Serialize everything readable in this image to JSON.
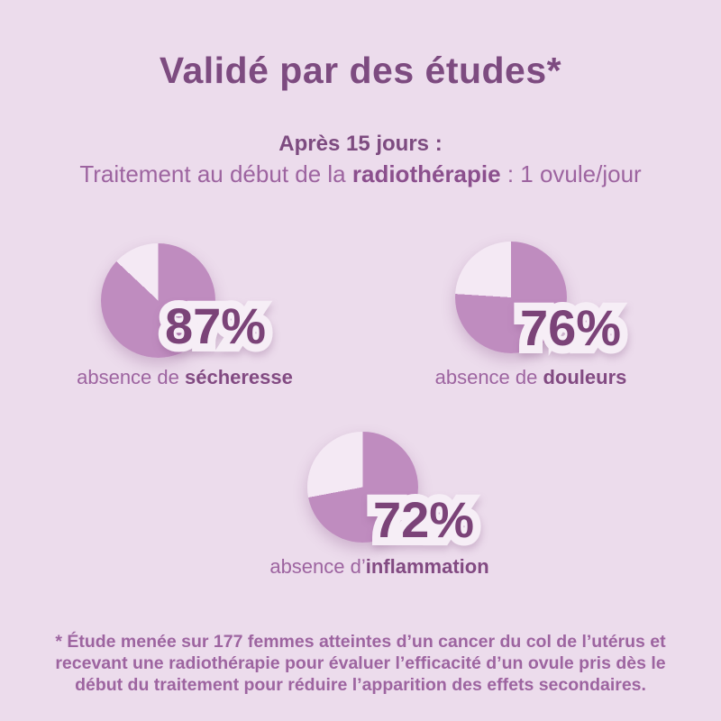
{
  "title": "Validé par des études*",
  "subtitle": {
    "line1": "Après 15 jours :",
    "line2_prefix": "Traitement au début de la ",
    "line2_bold": "radiothérapie",
    "line2_suffix": " : 1 ovule/jour"
  },
  "colors": {
    "background": "#ecdcec",
    "pie_fill": "#bf8cbf",
    "pie_empty": "#f4e9f4",
    "heading": "#7d4b80",
    "percent_text": "#7b4378",
    "body_text": "#9d64a0"
  },
  "charts": [
    {
      "percent": "87%",
      "label_prefix": "absence de ",
      "label_bold": "sécheresse"
    },
    {
      "percent": "76%",
      "label_prefix": "absence de ",
      "label_bold": "douleurs"
    },
    {
      "percent": "72%",
      "label_prefix": "absence d’",
      "label_bold": "inflammation"
    }
  ],
  "chart_data": [
    {
      "type": "pie",
      "title": "absence de sécheresse",
      "labels": [
        "absence de sécheresse",
        "reste"
      ],
      "values": [
        87,
        13
      ],
      "unit": "%",
      "colors": [
        "#bf8cbf",
        "#f4e9f4"
      ],
      "start_angle": "top",
      "direction": "clockwise",
      "center_label": "87%"
    },
    {
      "type": "pie",
      "title": "absence de douleurs",
      "labels": [
        "absence de douleurs",
        "reste"
      ],
      "values": [
        76,
        24
      ],
      "unit": "%",
      "colors": [
        "#bf8cbf",
        "#f4e9f4"
      ],
      "start_angle": "top",
      "direction": "clockwise",
      "center_label": "76%"
    },
    {
      "type": "pie",
      "title": "absence d’inflammation",
      "labels": [
        "absence d’inflammation",
        "reste"
      ],
      "values": [
        72,
        28
      ],
      "unit": "%",
      "colors": [
        "#bf8cbf",
        "#f4e9f4"
      ],
      "start_angle": "top",
      "direction": "clockwise",
      "center_label": "72%"
    }
  ],
  "footnote": {
    "line1": "* Étude menée sur 177 femmes atteintes d’un cancer du col de l’utérus et",
    "line2": "recevant une radiothérapie pour évaluer l’efficacité d’un ovule pris dès le",
    "line3": "début du traitement pour réduire l’apparition des effets secondaires."
  }
}
